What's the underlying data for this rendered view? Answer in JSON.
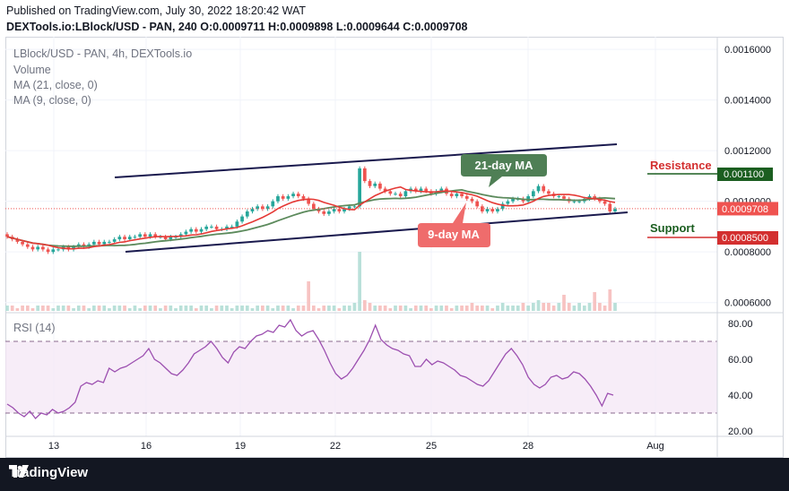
{
  "published": "Published on TradingView.com, July 30, 2022 18:20:42 WAT",
  "ohlc": {
    "symbol": "DEXTools.io:LBlock/USD - PAN, 240",
    "o_label": "O:",
    "o": "0.0009711",
    "h_label": "H:",
    "h": "0.0009898",
    "l_label": "L:",
    "l": "0.0009644",
    "c_label": "C:",
    "c": "0.0009708"
  },
  "legend": {
    "title": "LBlock/USD - PAN, 4h, DEXTools.io",
    "volume": "Volume",
    "ma21": "MA (21, close, 0)",
    "ma9": "MA (9, close, 0)",
    "rsi": "RSI (14)"
  },
  "annotations": {
    "ma21_label": "21-day MA",
    "ma9_label": "9-day MA",
    "resistance": "Resistance",
    "resistance_value": "0.001100",
    "support": "Support",
    "support_value": "0.0008500",
    "last_price": "0.0009708"
  },
  "footer": {
    "brand": "TradingView"
  },
  "colors": {
    "up": "#26a69a",
    "down": "#ef5350",
    "ma9": "#e53935",
    "ma21": "#5c8a5c",
    "channel": "#1a1a4e",
    "rsi": "#9c4fb0",
    "ma21_box": "#4f7f55",
    "ma9_box": "#ef6c6c",
    "resistance": "#d32f2f",
    "support": "#1b5e20"
  },
  "chart_data": [
    {
      "type": "candlestick",
      "x_ticks": [
        "13",
        "16",
        "19",
        "22",
        "25",
        "28",
        "Aug"
      ],
      "price_ticks": [
        "0.0016000",
        "0.0014000",
        "0.0012000",
        "0.0010000",
        "0.0008000",
        "0.0006000"
      ],
      "ylim": [
        0.00056,
        0.00165
      ],
      "closes": [
        0.00086,
        0.00085,
        0.00084,
        0.00083,
        0.00082,
        0.00081,
        0.00082,
        0.00081,
        0.0008,
        0.00081,
        0.00081,
        0.00082,
        0.00081,
        0.00082,
        0.00083,
        0.00082,
        0.00083,
        0.00084,
        0.00083,
        0.00084,
        0.00084,
        0.00085,
        0.00086,
        0.00085,
        0.00086,
        0.00086,
        0.00087,
        0.00086,
        0.00087,
        0.00086,
        0.00086,
        0.00085,
        0.00086,
        0.00086,
        0.00087,
        0.00088,
        0.00089,
        0.00088,
        0.00089,
        0.0009,
        0.0009,
        0.00089,
        0.00089,
        0.0009,
        0.0009,
        0.00092,
        0.00094,
        0.00096,
        0.00097,
        0.00098,
        0.00097,
        0.00098,
        0.001,
        0.00102,
        0.00101,
        0.00102,
        0.00103,
        0.00102,
        0.00101,
        0.00099,
        0.00097,
        0.00096,
        0.00095,
        0.00096,
        0.00097,
        0.00096,
        0.00097,
        0.00098,
        0.00098,
        0.00113,
        0.00108,
        0.00106,
        0.00107,
        0.00105,
        0.00104,
        0.00103,
        0.00103,
        0.00102,
        0.00104,
        0.00105,
        0.00104,
        0.00105,
        0.00104,
        0.00103,
        0.00104,
        0.00105,
        0.00103,
        0.00102,
        0.00103,
        0.00102,
        0.00101,
        0.001,
        0.00098,
        0.00096,
        0.00097,
        0.00096,
        0.00097,
        0.00099,
        0.001,
        0.00101,
        0.00101,
        0.001,
        0.00102,
        0.00104,
        0.00106,
        0.00104,
        0.00103,
        0.00102,
        0.00102,
        0.00101,
        0.001,
        0.001,
        0.001,
        0.00101,
        0.00102,
        0.00101,
        0.001,
        0.00099,
        0.00096,
        0.00097
      ],
      "ma9_label": "9-day MA",
      "ma21_label": "21-day MA"
    },
    {
      "type": "bar",
      "name": "Volume",
      "values": [
        2,
        2,
        1,
        2,
        2,
        1,
        2,
        2,
        2,
        1,
        2,
        2,
        2,
        1,
        2,
        2,
        1,
        2,
        2,
        2,
        1,
        2,
        2,
        2,
        1,
        2,
        1,
        2,
        2,
        2,
        1,
        2,
        2,
        1,
        2,
        2,
        2,
        1,
        2,
        2,
        1,
        2,
        2,
        2,
        1,
        2,
        2,
        2,
        1,
        2,
        2,
        2,
        1,
        2,
        2,
        2,
        1,
        2,
        2,
        11,
        2,
        1,
        2,
        2,
        2,
        1,
        2,
        2,
        3,
        22,
        4,
        3,
        2,
        2,
        2,
        1,
        2,
        2,
        2,
        1,
        2,
        2,
        2,
        1,
        2,
        2,
        2,
        1,
        2,
        2,
        2,
        3,
        2,
        2,
        2,
        1,
        2,
        3,
        2,
        2,
        2,
        3,
        2,
        3,
        4,
        3,
        3,
        2,
        3,
        6,
        3,
        2,
        3,
        2,
        3,
        7,
        3,
        2,
        8,
        3
      ]
    },
    {
      "type": "line",
      "name": "RSI (14)",
      "y_ticks": [
        "80.00",
        "60.00",
        "40.00",
        "20.00"
      ],
      "ylim": [
        17,
        86
      ],
      "bands": [
        30,
        70
      ],
      "values": [
        35,
        33,
        30,
        28,
        31,
        27,
        30,
        29,
        32,
        30,
        31,
        33,
        36,
        45,
        47,
        46,
        48,
        47,
        55,
        53,
        55,
        56,
        58,
        60,
        62,
        66,
        60,
        58,
        55,
        52,
        51,
        54,
        58,
        63,
        65,
        67,
        70,
        66,
        61,
        58,
        64,
        67,
        66,
        70,
        73,
        74,
        76,
        75,
        79,
        78,
        82,
        76,
        73,
        75,
        76,
        71,
        65,
        58,
        52,
        49,
        51,
        55,
        60,
        65,
        71,
        79,
        71,
        68,
        66,
        65,
        63,
        62,
        56,
        56,
        60,
        57,
        59,
        58,
        56,
        54,
        51,
        50,
        48,
        46,
        45,
        48,
        53,
        58,
        63,
        66,
        62,
        57,
        50,
        46,
        44,
        46,
        50,
        51,
        49,
        50,
        53,
        52,
        49,
        45,
        40,
        34,
        41,
        40
      ]
    }
  ]
}
